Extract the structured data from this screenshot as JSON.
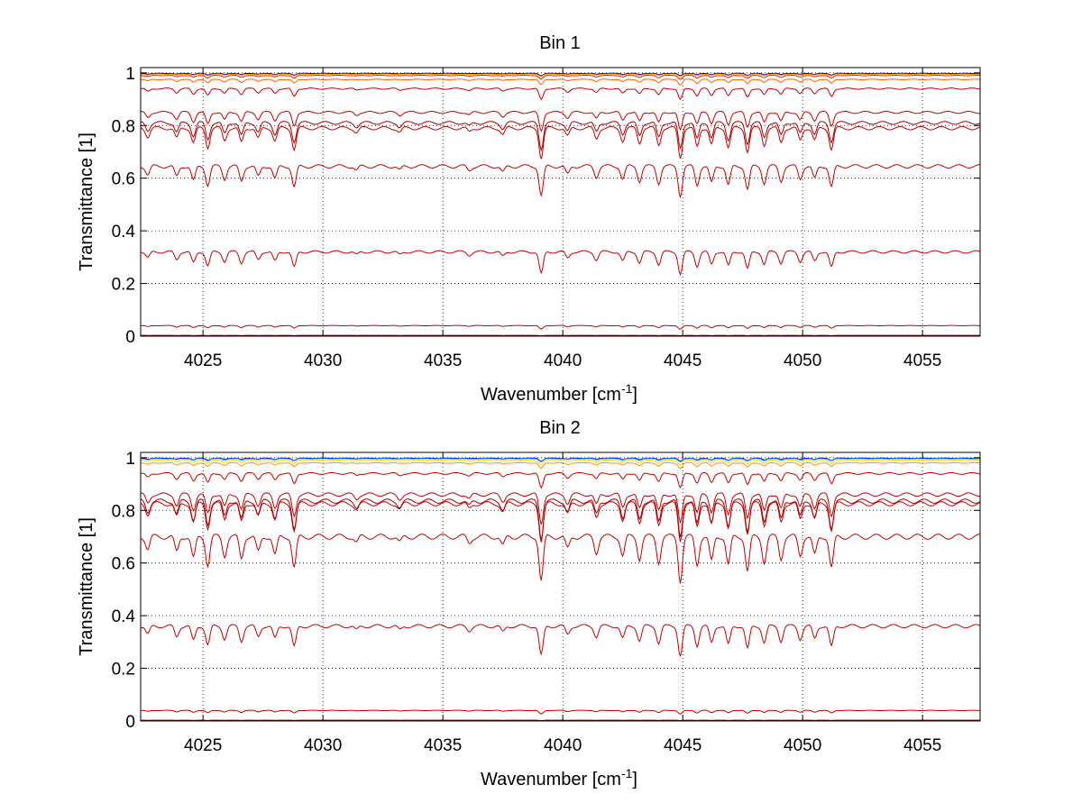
{
  "chart_data": [
    {
      "type": "line",
      "title": "Bin 1",
      "xlabel": "Wavenumber [cm",
      "xlabel_sup": "-1",
      "xlabel_end": "]",
      "ylabel": "Transmittance [1]",
      "xlim": [
        4022.4,
        4057.4
      ],
      "ylim": [
        0,
        1.02
      ],
      "xticks": [
        4025,
        4030,
        4035,
        4040,
        4045,
        4050,
        4055
      ],
      "yticks": [
        0,
        0.2,
        0.4,
        0.6,
        0.8,
        1
      ],
      "ytick_labels": [
        "0",
        "0.2",
        "0.4",
        "0.6",
        "0.8",
        "1"
      ],
      "grid": true,
      "line_colors": [
        "#0000aa",
        "#0050ff",
        "#00a0ff",
        "#20c0a0",
        "#ffd000",
        "#ff9000",
        "#ff6000",
        "#e02000",
        "#c00000",
        "#a00000",
        "#800000"
      ],
      "series": [
        {
          "baseline": 0.998,
          "depth": 0.006,
          "color": "#0000aa"
        },
        {
          "baseline": 0.995,
          "depth": 0.006,
          "color": "#ff9000"
        },
        {
          "baseline": 0.99,
          "depth": 0.01,
          "color": "#e02000"
        },
        {
          "baseline": 0.975,
          "depth": 0.015,
          "color": "#ff6000"
        },
        {
          "baseline": 0.94,
          "depth": 0.03,
          "color": "#c00000"
        },
        {
          "baseline": 0.85,
          "depth": 0.05,
          "color": "#c00000"
        },
        {
          "baseline": 0.81,
          "depth": 0.07,
          "color": "#a00000"
        },
        {
          "baseline": 0.79,
          "depth": 0.08,
          "color": "#c00000"
        },
        {
          "baseline": 0.645,
          "depth": 0.08,
          "color": "#c00000"
        },
        {
          "baseline": 0.32,
          "depth": 0.06,
          "color": "#c00000"
        },
        {
          "baseline": 0.04,
          "depth": 0.01,
          "color": "#c00000"
        },
        {
          "baseline": 0.003,
          "depth": 0.001,
          "color": "#800000"
        }
      ]
    },
    {
      "type": "line",
      "title": "Bin 2",
      "xlabel": "Wavenumber [cm",
      "xlabel_sup": "-1",
      "xlabel_end": "]",
      "ylabel": "Transmittance [1]",
      "xlim": [
        4022.4,
        4057.4
      ],
      "ylim": [
        0,
        1.02
      ],
      "xticks": [
        4025,
        4030,
        4035,
        4040,
        4045,
        4050,
        4055
      ],
      "yticks": [
        0,
        0.2,
        0.4,
        0.6,
        0.8,
        1
      ],
      "ytick_labels": [
        "0",
        "0.2",
        "0.4",
        "0.6",
        "0.8",
        "1"
      ],
      "grid": true,
      "line_colors": [
        "#0000aa",
        "#0050ff",
        "#00a0ff",
        "#20c0a0",
        "#ffd000",
        "#ff9000",
        "#ff6000",
        "#e02000",
        "#c00000",
        "#a00000",
        "#800000"
      ],
      "series": [
        {
          "baseline": 0.998,
          "depth": 0.008,
          "color": "#0000aa"
        },
        {
          "baseline": 0.996,
          "depth": 0.008,
          "color": "#00a0ff"
        },
        {
          "baseline": 0.99,
          "depth": 0.012,
          "color": "#ffd000"
        },
        {
          "baseline": 0.98,
          "depth": 0.015,
          "color": "#ff9000"
        },
        {
          "baseline": 0.94,
          "depth": 0.04,
          "color": "#c00000"
        },
        {
          "baseline": 0.86,
          "depth": 0.08,
          "color": "#c00000"
        },
        {
          "baseline": 0.835,
          "depth": 0.1,
          "color": "#a00000"
        },
        {
          "baseline": 0.825,
          "depth": 0.1,
          "color": "#c00000"
        },
        {
          "baseline": 0.7,
          "depth": 0.12,
          "color": "#c00000"
        },
        {
          "baseline": 0.36,
          "depth": 0.08,
          "color": "#c00000"
        },
        {
          "baseline": 0.04,
          "depth": 0.01,
          "color": "#c00000"
        },
        {
          "baseline": 0.003,
          "depth": 0.001,
          "color": "#800000"
        }
      ]
    }
  ]
}
